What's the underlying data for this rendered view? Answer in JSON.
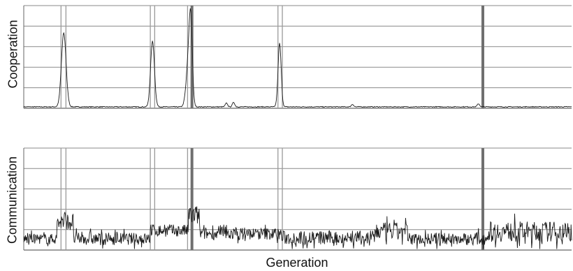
{
  "chart_data": [
    {
      "type": "line",
      "ylabel": "Cooperation",
      "xlabel": "",
      "xlim": [
        0,
        1000
      ],
      "ylim": [
        0,
        5
      ],
      "grid": true,
      "highlight_lines": [
        {
          "x": 68,
          "style": "thin-pair"
        },
        {
          "x": 77,
          "style": "thin-pair"
        },
        {
          "x": 231,
          "style": "thin-pair"
        },
        {
          "x": 239,
          "style": "thin-pair"
        },
        {
          "x": 299,
          "style": "thin-pair"
        },
        {
          "x": 307,
          "style": "thick"
        },
        {
          "x": 464,
          "style": "thin-pair"
        },
        {
          "x": 472,
          "style": "thin-pair"
        },
        {
          "x": 838,
          "style": "thick"
        }
      ],
      "baseline": 0.05,
      "peaks": [
        {
          "x": 73,
          "y": 3.6,
          "w": 6
        },
        {
          "x": 235,
          "y": 3.2,
          "w": 5
        },
        {
          "x": 301,
          "y": 2.3,
          "w": 6
        },
        {
          "x": 305,
          "y": 3.2,
          "w": 4
        },
        {
          "x": 467,
          "y": 3.1,
          "w": 4
        },
        {
          "x": 370,
          "y": 0.18,
          "w": 3
        },
        {
          "x": 383,
          "y": 0.22,
          "w": 3
        },
        {
          "x": 600,
          "y": 0.12,
          "w": 3
        },
        {
          "x": 830,
          "y": 0.15,
          "w": 3
        }
      ]
    },
    {
      "type": "line",
      "ylabel": "Communication",
      "xlabel": "Generation",
      "xlim": [
        0,
        1000
      ],
      "ylim": [
        0,
        5
      ],
      "grid": true,
      "highlight_lines": [
        {
          "x": 68,
          "style": "thin-pair"
        },
        {
          "x": 77,
          "style": "thin-pair"
        },
        {
          "x": 231,
          "style": "thin-pair"
        },
        {
          "x": 239,
          "style": "thin-pair"
        },
        {
          "x": 299,
          "style": "thin-pair"
        },
        {
          "x": 307,
          "style": "thick"
        },
        {
          "x": 464,
          "style": "thin-pair"
        },
        {
          "x": 472,
          "style": "thin-pair"
        },
        {
          "x": 838,
          "style": "thick"
        }
      ],
      "segments": [
        {
          "from": 0,
          "to": 60,
          "level": 0.55,
          "noise": 0.25
        },
        {
          "from": 60,
          "to": 90,
          "level": 1.4,
          "noise": 0.4
        },
        {
          "from": 90,
          "to": 230,
          "level": 0.55,
          "noise": 0.3
        },
        {
          "from": 230,
          "to": 300,
          "level": 0.95,
          "noise": 0.3
        },
        {
          "from": 300,
          "to": 320,
          "level": 1.7,
          "noise": 0.5
        },
        {
          "from": 320,
          "to": 470,
          "level": 0.8,
          "noise": 0.3
        },
        {
          "from": 470,
          "to": 640,
          "level": 0.6,
          "noise": 0.35
        },
        {
          "from": 640,
          "to": 700,
          "level": 0.9,
          "noise": 0.45
        },
        {
          "from": 700,
          "to": 845,
          "level": 0.55,
          "noise": 0.3
        },
        {
          "from": 845,
          "to": 1000,
          "level": 0.9,
          "noise": 0.5
        }
      ]
    }
  ]
}
